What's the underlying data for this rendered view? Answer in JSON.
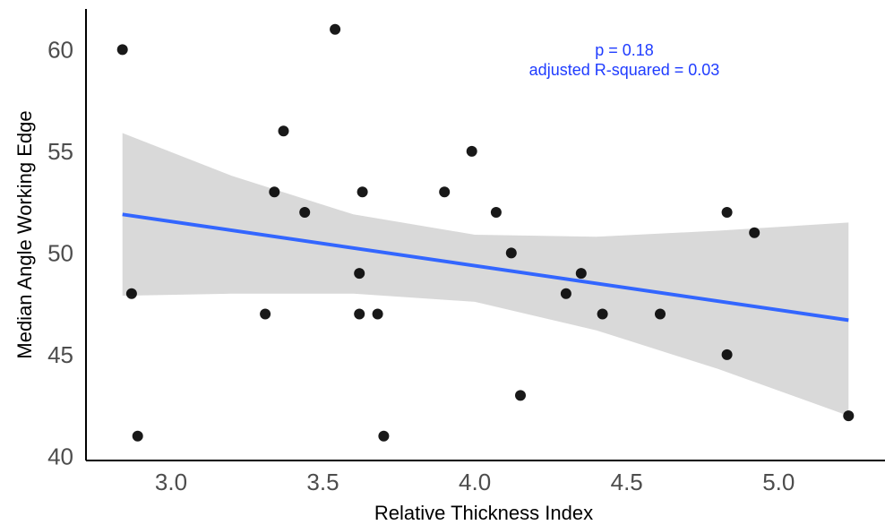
{
  "chart_data": {
    "type": "scatter",
    "xlabel": "Relative Thickness Index",
    "ylabel": "Median Angle Working Edge",
    "xlim": [
      2.72,
      5.35
    ],
    "ylim": [
      39.8,
      62.0
    ],
    "x_ticks": [
      "3.0",
      "3.5",
      "4.0",
      "4.5",
      "5.0"
    ],
    "y_ticks": [
      "40",
      "45",
      "50",
      "55",
      "60"
    ],
    "grid": false,
    "points": [
      {
        "x": 2.84,
        "y": 60
      },
      {
        "x": 2.87,
        "y": 48
      },
      {
        "x": 2.89,
        "y": 41
      },
      {
        "x": 3.31,
        "y": 47
      },
      {
        "x": 3.34,
        "y": 53
      },
      {
        "x": 3.37,
        "y": 56
      },
      {
        "x": 3.44,
        "y": 52
      },
      {
        "x": 3.54,
        "y": 61
      },
      {
        "x": 3.62,
        "y": 49
      },
      {
        "x": 3.62,
        "y": 47
      },
      {
        "x": 3.63,
        "y": 53
      },
      {
        "x": 3.68,
        "y": 47
      },
      {
        "x": 3.7,
        "y": 41
      },
      {
        "x": 3.9,
        "y": 53
      },
      {
        "x": 3.99,
        "y": 55
      },
      {
        "x": 4.07,
        "y": 52
      },
      {
        "x": 4.12,
        "y": 50
      },
      {
        "x": 4.15,
        "y": 43
      },
      {
        "x": 4.3,
        "y": 48
      },
      {
        "x": 4.35,
        "y": 49
      },
      {
        "x": 4.42,
        "y": 47
      },
      {
        "x": 4.61,
        "y": 47
      },
      {
        "x": 4.83,
        "y": 52
      },
      {
        "x": 4.83,
        "y": 45
      },
      {
        "x": 4.92,
        "y": 51
      },
      {
        "x": 5.23,
        "y": 42
      }
    ],
    "fit_line": {
      "x": [
        2.84,
        5.23
      ],
      "y": [
        51.9,
        46.7
      ],
      "color": "#3366ff"
    },
    "confidence_band": {
      "x": [
        2.84,
        3.2,
        3.6,
        4.0,
        4.4,
        4.8,
        5.23
      ],
      "upper": [
        55.9,
        53.8,
        51.9,
        50.9,
        50.8,
        51.1,
        51.5
      ],
      "lower": [
        47.9,
        48.0,
        48.0,
        47.6,
        46.2,
        44.3,
        42.0
      ],
      "color": "#d9d9d9"
    },
    "annotations": [
      "p = 0.18",
      "adjusted R-squared = 0.03"
    ],
    "annotation_color": "#1f3cff",
    "point_color": "#000000"
  }
}
